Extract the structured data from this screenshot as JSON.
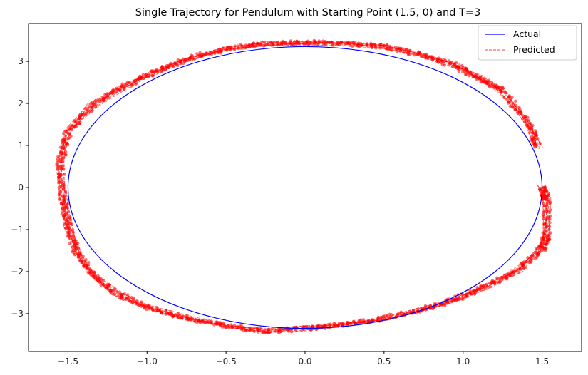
{
  "chart_data": {
    "type": "line",
    "title": "Single Trajectory for Pendulum with Starting Point (1.5, 0) and T=3",
    "xlabel": "",
    "ylabel": "",
    "xlim": [
      -1.75,
      1.75
    ],
    "ylim": [
      -3.9,
      3.9
    ],
    "xticks": [
      -1.5,
      -1.0,
      -0.5,
      0.0,
      0.5,
      1.0,
      1.5
    ],
    "xtick_labels": [
      "−1.5",
      "−1.0",
      "−0.5",
      "0.0",
      "0.5",
      "1.0",
      "1.5"
    ],
    "yticks": [
      -3,
      -2,
      -1,
      0,
      1,
      2,
      3
    ],
    "ytick_labels": [
      "−3",
      "−2",
      "−1",
      "0",
      "1",
      "2",
      "3"
    ],
    "grid": false,
    "legend_position": "top-right",
    "series": [
      {
        "name": "Actual",
        "style": "solid",
        "color": "#0000ff",
        "shape": "closed ellipse",
        "x_range": [
          -1.5,
          1.5
        ],
        "y_range": [
          -3.35,
          3.35
        ]
      },
      {
        "name": "Predicted",
        "style": "dashed",
        "color": "#ff0000",
        "markers": "dense red dots along predicted trajectories",
        "x": [
          1.5,
          1.53,
          1.53,
          1.5,
          1.35,
          1.15,
          0.95,
          0.75,
          0.5,
          0.25,
          0.0,
          -0.25,
          -0.5,
          -0.75,
          -1.0,
          -1.2,
          -1.35,
          -1.45,
          -1.5,
          -1.53,
          -1.55,
          -1.5,
          -1.35,
          -1.15,
          -0.95,
          -0.75,
          -0.5,
          -0.25,
          0.0,
          0.25,
          0.5,
          0.75,
          0.95,
          1.1,
          1.25,
          1.42,
          1.48
        ],
        "y": [
          0.0,
          -0.3,
          -1.15,
          -1.45,
          -1.95,
          -2.35,
          -2.65,
          -2.9,
          -3.1,
          -3.25,
          -3.35,
          -3.42,
          -3.28,
          -3.1,
          -2.85,
          -2.5,
          -2.05,
          -1.5,
          -0.9,
          -0.3,
          0.6,
          1.3,
          1.95,
          2.4,
          2.75,
          3.05,
          3.3,
          3.42,
          3.45,
          3.42,
          3.35,
          3.15,
          2.9,
          2.6,
          2.3,
          1.5,
          0.95
        ]
      }
    ]
  }
}
